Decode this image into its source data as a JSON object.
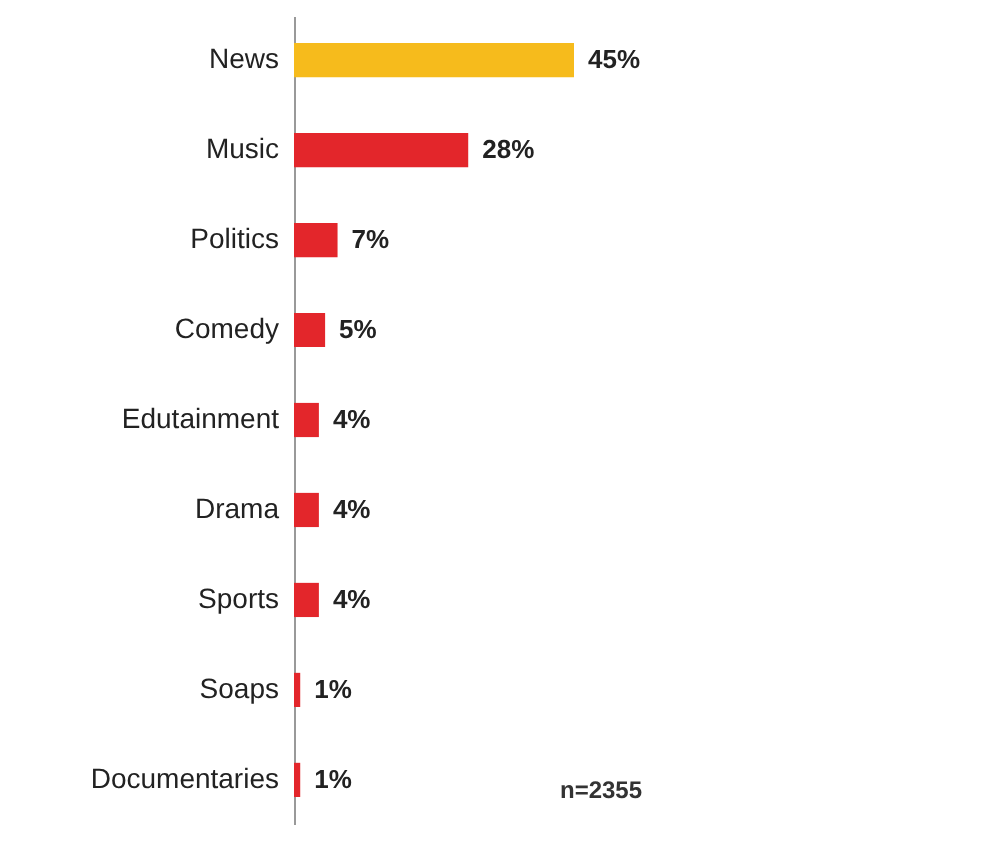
{
  "chart_data": {
    "type": "bar",
    "orientation": "horizontal",
    "categories": [
      "News",
      "Music",
      "Politics",
      "Comedy",
      "Edutainment",
      "Drama",
      "Sports",
      "Soaps",
      "Documentaries"
    ],
    "values": [
      45,
      28,
      7,
      5,
      4,
      4,
      4,
      1,
      1
    ],
    "colors": [
      "#f6bb1c",
      "#e3262b",
      "#e3262b",
      "#e3262b",
      "#e3262b",
      "#e3262b",
      "#e3262b",
      "#e3262b",
      "#e3262b"
    ],
    "value_labels": [
      "45%",
      "28%",
      "7%",
      "5%",
      "4%",
      "4%",
      "4%",
      "1%",
      "1%"
    ],
    "annotations": [
      "n=2355"
    ]
  }
}
